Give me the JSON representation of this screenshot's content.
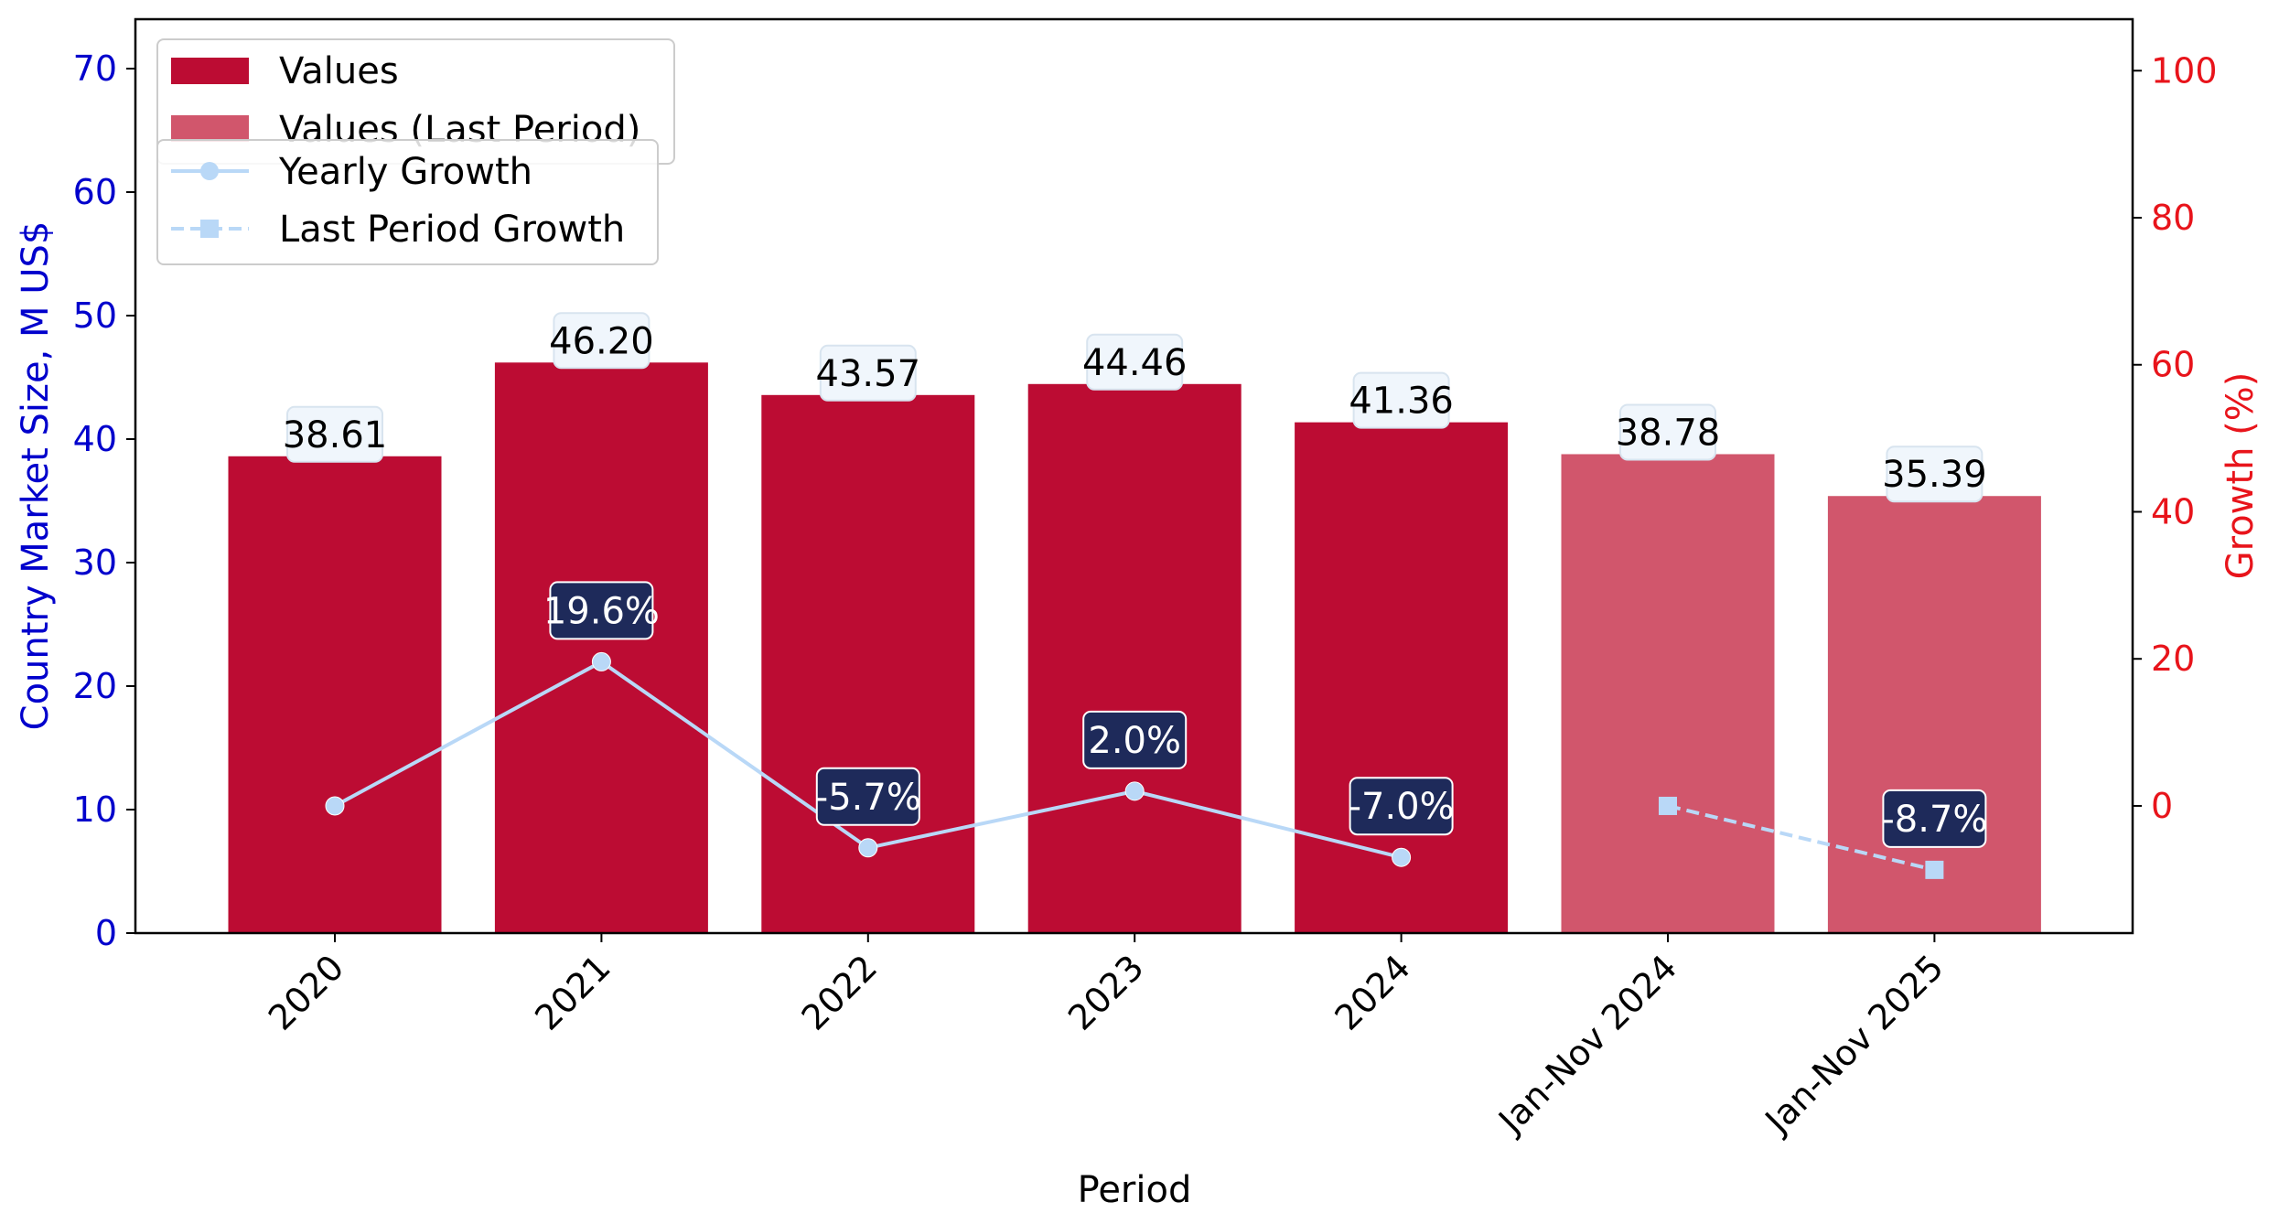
{
  "chart_data": {
    "type": "bar",
    "categories": [
      "2020",
      "2021",
      "2022",
      "2023",
      "2024",
      "Jan-Nov 2024",
      "Jan-Nov 2025"
    ],
    "series": [
      {
        "name": "Values",
        "kind": "bar",
        "axis": "left",
        "color": "#bc0c33",
        "values": [
          38.61,
          46.2,
          43.57,
          44.46,
          41.36,
          null,
          null
        ]
      },
      {
        "name": "Values (Last Period)",
        "kind": "bar",
        "axis": "left",
        "color": "#d1566c",
        "values": [
          null,
          null,
          null,
          null,
          null,
          38.78,
          35.39
        ]
      },
      {
        "name": "Yearly Growth",
        "kind": "line",
        "axis": "right",
        "color": "#b9d8f7",
        "marker": "circle",
        "values": [
          0,
          19.6,
          -5.7,
          2.0,
          -7.0,
          null,
          null
        ]
      },
      {
        "name": "Last Period Growth",
        "kind": "line",
        "axis": "right",
        "color": "#b9d8f7",
        "marker": "square",
        "dashed": true,
        "values": [
          null,
          null,
          null,
          null,
          null,
          0,
          -8.7
        ]
      }
    ],
    "value_labels": [
      "38.61",
      "46.20",
      "43.57",
      "44.46",
      "41.36",
      "38.78",
      "35.39"
    ],
    "growth_labels": [
      {
        "index": 1,
        "text": "19.6%"
      },
      {
        "index": 2,
        "text": "-5.7%"
      },
      {
        "index": 3,
        "text": "2.0%"
      },
      {
        "index": 4,
        "text": "-7.0%"
      },
      {
        "index": 6,
        "text": "-8.7%"
      }
    ],
    "xlabel": "Period",
    "ylabel": "Country Market Size, M US$",
    "y2label": "Growth (%)",
    "ylim": [
      0,
      74
    ],
    "y2lim": [
      -17.3,
      107
    ],
    "yticks": [
      0,
      10,
      20,
      30,
      40,
      50,
      60,
      70
    ],
    "y2ticks": [
      0,
      20,
      40,
      60,
      80,
      100
    ],
    "ylabel_color": "#0000cc",
    "y2label_color": "#e8141b",
    "value_label_box_color": "#f0f6fc",
    "growth_label_box_color": "#1e2a5a",
    "legend_position": "top-left",
    "grid": false
  }
}
